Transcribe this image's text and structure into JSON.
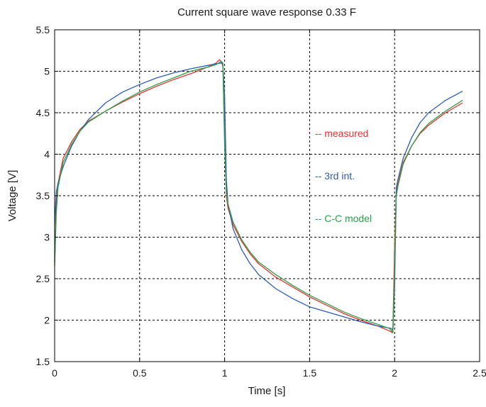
{
  "chart_data": {
    "type": "line",
    "title": "Current square wave response 0.33 F",
    "xlabel": "Time [s]",
    "ylabel": "Voltage [V]",
    "xlim": [
      0,
      2.5
    ],
    "ylim": [
      1.5,
      5.5
    ],
    "xticks": [
      0,
      0.5,
      1,
      1.5,
      2,
      2.5
    ],
    "xtick_labels": [
      "0",
      "0.5",
      "1",
      "1.5",
      "2",
      "2.5"
    ],
    "yticks": [
      1.5,
      2,
      2.5,
      3,
      3.5,
      4,
      4.5,
      5,
      5.5
    ],
    "ytick_labels": [
      "1.5",
      "2",
      "2.5",
      "3",
      "3.5",
      "4",
      "4.5",
      "5",
      "5.5"
    ],
    "grid": true,
    "legend_placement": "right-middle",
    "series": [
      {
        "name": "-- measured",
        "color": "#e8312f",
        "x": [
          0,
          0.01,
          0.02,
          0.05,
          0.1,
          0.15,
          0.2,
          0.3,
          0.4,
          0.5,
          0.6,
          0.7,
          0.8,
          0.9,
          0.95,
          0.97,
          0.985,
          0.99,
          1.0,
          1.01,
          1.02,
          1.05,
          1.1,
          1.15,
          1.2,
          1.3,
          1.4,
          1.5,
          1.6,
          1.7,
          1.8,
          1.9,
          1.97,
          1.985,
          1.99,
          2.0,
          2.01,
          2.02,
          2.05,
          2.1,
          2.15,
          2.2,
          2.3,
          2.4
        ],
        "y": [
          2.7,
          3.4,
          3.65,
          3.95,
          4.15,
          4.3,
          4.4,
          4.52,
          4.63,
          4.73,
          4.82,
          4.9,
          4.97,
          5.05,
          5.1,
          5.14,
          5.1,
          5.05,
          4.2,
          3.5,
          3.35,
          3.15,
          2.95,
          2.8,
          2.68,
          2.52,
          2.4,
          2.28,
          2.18,
          2.08,
          2.0,
          1.93,
          1.87,
          1.85,
          1.9,
          2.9,
          3.55,
          3.65,
          3.9,
          4.1,
          4.25,
          4.35,
          4.5,
          4.62
        ]
      },
      {
        "name": "-- 3rd int.",
        "color": "#2e5db0",
        "x": [
          0,
          0.01,
          0.02,
          0.05,
          0.1,
          0.15,
          0.2,
          0.3,
          0.4,
          0.5,
          0.6,
          0.7,
          0.8,
          0.9,
          0.95,
          0.98,
          0.99,
          1.0,
          1.01,
          1.02,
          1.05,
          1.1,
          1.15,
          1.2,
          1.3,
          1.4,
          1.5,
          1.6,
          1.7,
          1.8,
          1.9,
          1.98,
          1.99,
          2.0,
          2.01,
          2.02,
          2.05,
          2.1,
          2.15,
          2.2,
          2.3,
          2.4
        ],
        "y": [
          3.15,
          3.55,
          3.65,
          3.85,
          4.1,
          4.28,
          4.42,
          4.62,
          4.75,
          4.84,
          4.92,
          4.98,
          5.03,
          5.07,
          5.09,
          5.1,
          5.08,
          4.7,
          3.7,
          3.4,
          3.1,
          2.85,
          2.68,
          2.55,
          2.38,
          2.26,
          2.16,
          2.1,
          2.04,
          1.98,
          1.93,
          1.9,
          1.88,
          2.4,
          3.6,
          3.7,
          3.95,
          4.2,
          4.38,
          4.5,
          4.65,
          4.76
        ]
      },
      {
        "name": "-- C-C model",
        "color": "#2aa04a",
        "x": [
          0,
          0.01,
          0.02,
          0.05,
          0.1,
          0.15,
          0.2,
          0.3,
          0.4,
          0.5,
          0.6,
          0.7,
          0.8,
          0.9,
          0.95,
          0.98,
          0.99,
          1.0,
          1.01,
          1.02,
          1.05,
          1.1,
          1.15,
          1.2,
          1.3,
          1.4,
          1.5,
          1.6,
          1.7,
          1.8,
          1.9,
          1.97,
          1.99,
          2.0,
          2.01,
          2.02,
          2.05,
          2.1,
          2.15,
          2.2,
          2.3,
          2.4
        ],
        "y": [
          2.65,
          3.3,
          3.6,
          3.9,
          4.12,
          4.28,
          4.39,
          4.52,
          4.64,
          4.75,
          4.84,
          4.92,
          5.0,
          5.05,
          5.08,
          5.12,
          5.1,
          4.1,
          3.55,
          3.4,
          3.18,
          2.97,
          2.82,
          2.7,
          2.55,
          2.42,
          2.3,
          2.2,
          2.1,
          2.02,
          1.95,
          1.9,
          1.85,
          2.6,
          3.5,
          3.62,
          3.88,
          4.1,
          4.26,
          4.37,
          4.52,
          4.65
        ]
      }
    ]
  }
}
